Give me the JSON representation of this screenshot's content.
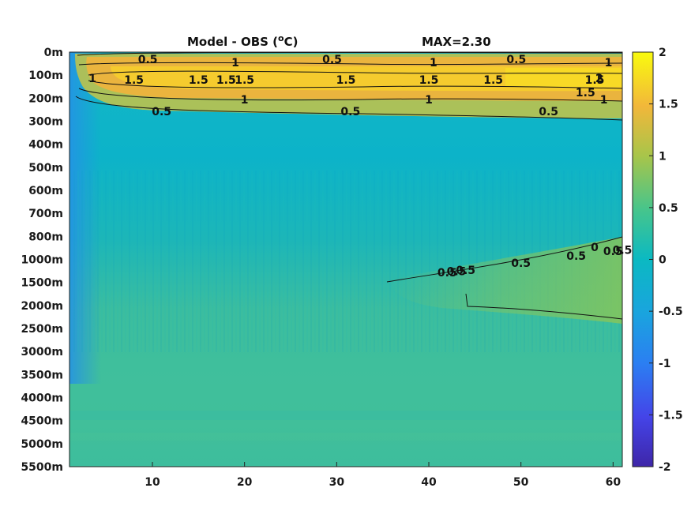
{
  "chart_data": {
    "type": "heatmap",
    "title": "Model - OBS (",
    "title_unit_sup": "o",
    "title_unit_tail": "C)",
    "max_label": "MAX=2.30",
    "x_ticks": [
      10,
      20,
      30,
      40,
      50,
      60
    ],
    "xlim": [
      1,
      61
    ],
    "y_labels": [
      "0m",
      "100m",
      "200m",
      "300m",
      "400m",
      "500m",
      "600m",
      "700m",
      "800m",
      "1000m",
      "1500m",
      "2000m",
      "2500m",
      "3000m",
      "3500m",
      "4000m",
      "4500m",
      "5000m",
      "5500m"
    ],
    "colorbar": {
      "ticks": [
        2,
        1.5,
        1,
        0.5,
        0,
        -0.5,
        -1,
        -1.5,
        -2
      ],
      "tick_labels": [
        "2",
        "1.5",
        "1",
        "0.5",
        "0",
        "-0.5",
        "-1",
        "-1.5",
        "-2"
      ],
      "range": [
        -2,
        2
      ]
    },
    "contour_labels": [
      {
        "text": "0.5",
        "x": 9.5,
        "level": 0.5
      },
      {
        "text": "1",
        "x": 19,
        "level": 1
      },
      {
        "text": "0.5",
        "x": 29.5,
        "level": 0.5
      },
      {
        "text": "1",
        "x": 40.5,
        "level": 1
      },
      {
        "text": "0.5",
        "x": 49.5,
        "level": 0.5
      },
      {
        "text": "1",
        "x": 59.5,
        "level": 1
      },
      {
        "text": "1",
        "x": 3.5,
        "level": 1
      },
      {
        "text": "1.5",
        "x": 8,
        "level": 1.5
      },
      {
        "text": "1.5",
        "x": 15,
        "level": 1.5
      },
      {
        "text": "1.5",
        "x": 18,
        "level": 1.5
      },
      {
        "text": "1.5",
        "x": 20,
        "level": 1.5
      },
      {
        "text": "1.5",
        "x": 31,
        "level": 1.5
      },
      {
        "text": "1.5",
        "x": 40,
        "level": 1.5
      },
      {
        "text": "1.5",
        "x": 47,
        "level": 1.5
      },
      {
        "text": "1.5",
        "x": 58,
        "level": 1.5
      },
      {
        "text": "2",
        "x": 58.5,
        "level": 2
      },
      {
        "text": "1.5",
        "x": 57,
        "level": 1.5
      },
      {
        "text": "1",
        "x": 20,
        "level": 1
      },
      {
        "text": "1",
        "x": 40,
        "level": 1
      },
      {
        "text": "1",
        "x": 59,
        "level": 1
      },
      {
        "text": "0.5",
        "x": 11,
        "level": 0.5
      },
      {
        "text": "0.5",
        "x": 31.5,
        "level": 0.5
      },
      {
        "text": "0.5",
        "x": 53,
        "level": 0.5
      },
      {
        "text": "0.5",
        "x": 43,
        "level": 0.5
      },
      {
        "text": "0.5",
        "x": 44,
        "level": 0.5
      },
      {
        "text": "0.5",
        "x": 42,
        "level": 0.5
      },
      {
        "text": "0.5",
        "x": 50,
        "level": 0.5
      },
      {
        "text": "0.5",
        "x": 56,
        "level": 0.5
      },
      {
        "text": "0",
        "x": 58,
        "level": 0
      },
      {
        "text": "0.5",
        "x": 60,
        "level": 0.5
      },
      {
        "text": "0.5",
        "x": 61,
        "level": 0.5
      }
    ]
  }
}
